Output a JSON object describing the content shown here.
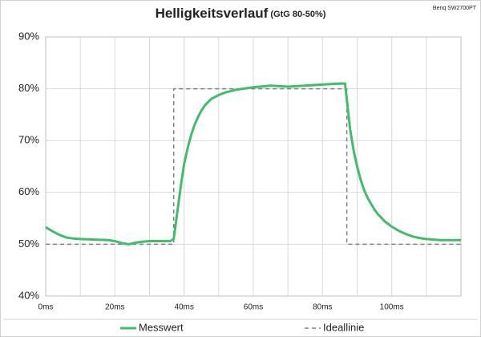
{
  "chart_data": {
    "type": "line",
    "title": "Helligkeitsverlauf",
    "subtitle": "(GtG 80-50%)",
    "annotation": "Benq SW2700PT",
    "xlim": [
      0,
      120
    ],
    "ylim": [
      40,
      90
    ],
    "xticks": [
      {
        "value": 0,
        "label": "0ms"
      },
      {
        "value": 20,
        "label": "20ms"
      },
      {
        "value": 40,
        "label": "40ms"
      },
      {
        "value": 60,
        "label": "60ms"
      },
      {
        "value": 80,
        "label": "80ms"
      },
      {
        "value": 100,
        "label": "100ms"
      }
    ],
    "xminorticks": [
      10,
      30,
      50,
      70,
      90,
      110
    ],
    "yticks": [
      {
        "value": 40,
        "label": "40%"
      },
      {
        "value": 50,
        "label": "50%"
      },
      {
        "value": 60,
        "label": "60%"
      },
      {
        "value": 70,
        "label": "70%"
      },
      {
        "value": 80,
        "label": "80%"
      },
      {
        "value": 90,
        "label": "90%"
      }
    ],
    "grid": true,
    "legend": "bottom",
    "series": [
      {
        "name": "Messwert",
        "color": "#3cbf6a",
        "dashed": false,
        "x": [
          0,
          2,
          4,
          6,
          8,
          10,
          14,
          18,
          20,
          22,
          24,
          26,
          28,
          30,
          33,
          36,
          37,
          38,
          39,
          40,
          41,
          42,
          43,
          44,
          45,
          46,
          47,
          48,
          50,
          52,
          55,
          60,
          65,
          70,
          75,
          80,
          85,
          86.5,
          87,
          88,
          89,
          90,
          91,
          92,
          93,
          94,
          95,
          96,
          98,
          100,
          102,
          104,
          106,
          108,
          110,
          114,
          120
        ],
        "values": [
          53.3,
          52.5,
          51.8,
          51.3,
          51.1,
          51.0,
          50.9,
          50.8,
          50.6,
          50.2,
          50.0,
          50.3,
          50.5,
          50.6,
          50.6,
          50.6,
          51,
          56,
          61,
          65.5,
          68.5,
          71,
          73,
          74.5,
          75.8,
          76.8,
          77.5,
          78.1,
          78.8,
          79.3,
          79.8,
          80.3,
          80.6,
          80.4,
          80.6,
          80.8,
          81,
          81,
          78,
          72,
          68,
          65,
          62.5,
          60.5,
          59,
          57.8,
          56.7,
          55.8,
          54.4,
          53.4,
          52.6,
          52,
          51.5,
          51.2,
          51,
          50.8,
          50.8
        ]
      },
      {
        "name": "Ideallinie",
        "color": "#808080",
        "dashed": true,
        "x": [
          0,
          37,
          37,
          87,
          87,
          120
        ],
        "values": [
          50,
          50,
          80,
          80,
          50,
          50
        ]
      }
    ]
  }
}
